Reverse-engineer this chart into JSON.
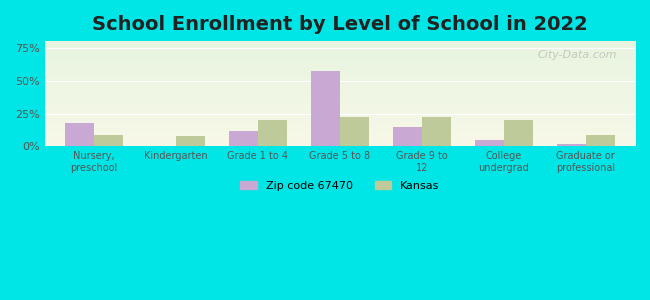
{
  "title": "School Enrollment by Level of School in 2022",
  "categories": [
    "Nursery,\npreschool",
    "Kindergarten",
    "Grade 1 to 4",
    "Grade 5 to 8",
    "Grade 9 to\n12",
    "College\nundergrad",
    "Graduate or\nprofessional"
  ],
  "zip_values": [
    18.0,
    0.0,
    12.0,
    57.0,
    15.0,
    5.0,
    2.0
  ],
  "kansas_values": [
    9.0,
    8.0,
    20.0,
    22.0,
    22.0,
    20.0,
    9.0
  ],
  "zip_color": "#c9a8d4",
  "kansas_color": "#beca9a",
  "zip_label": "Zip code 67470",
  "kansas_label": "Kansas",
  "yticks": [
    0,
    25,
    50,
    75
  ],
  "ytick_labels": [
    "0%",
    "25%",
    "50%",
    "75%"
  ],
  "ylim": [
    0,
    80
  ],
  "bg_outer": "#00e5e5",
  "title_fontsize": 14,
  "watermark": "City-Data.com"
}
